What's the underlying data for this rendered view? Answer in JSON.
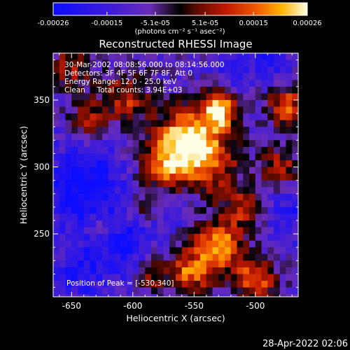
{
  "chart_data": {
    "type": "heatmap",
    "title": "Reconstructed RHESSI Image",
    "xlabel": "Heliocentric X (arcsec)",
    "ylabel": "Heliocentric Y (arcsec)",
    "xlim": [
      -665,
      -465
    ],
    "ylim": [
      203,
      385
    ],
    "xticks": [
      -650,
      -600,
      -550,
      -500
    ],
    "yticks": [
      250,
      300,
      350
    ],
    "colorbar": {
      "min": -0.00026,
      "max": 0.00026,
      "ticks": [
        {
          "value": -0.00026,
          "label": "-0.00026"
        },
        {
          "value": -0.00015,
          "label": "-0.00015"
        },
        {
          "value": -5.1e-05,
          "label": "-5.1e-05"
        },
        {
          "value": 5.1e-05,
          "label": "5.1e-05"
        },
        {
          "value": 0.00015,
          "label": "0.00015"
        },
        {
          "value": 0.00026,
          "label": "0.00026"
        }
      ],
      "unit": "(photons cm⁻² s⁻¹ asec⁻²)"
    },
    "annotations": [
      "30-Mar-2002 08:08:56.000 to 08:14:56.000",
      "Detectors: 3F 4F 5F 6F 7F 8F, Att 0",
      "Energy Range: 12.0 - 25.0 keV",
      "Clean     Total counts: 3.94E+03"
    ],
    "peak_label": "Position of Peak = [-530,340]",
    "peak": {
      "x": -530,
      "y": 340
    },
    "sources": [
      {
        "x": -530,
        "y": 342,
        "sigma": 10,
        "amp": 1.0
      },
      {
        "x": -560,
        "y": 322,
        "sigma": 16,
        "amp": 0.75
      },
      {
        "x": -540,
        "y": 305,
        "sigma": 18,
        "amp": 0.7
      },
      {
        "x": -575,
        "y": 300,
        "sigma": 13,
        "amp": 0.55
      },
      {
        "x": -605,
        "y": 352,
        "sigma": 13,
        "amp": 0.55
      },
      {
        "x": -635,
        "y": 335,
        "sigma": 11,
        "amp": 0.45
      },
      {
        "x": -650,
        "y": 375,
        "sigma": 12,
        "amp": 0.45
      },
      {
        "x": -475,
        "y": 345,
        "sigma": 10,
        "amp": 0.7
      },
      {
        "x": -480,
        "y": 300,
        "sigma": 12,
        "amp": 0.45
      },
      {
        "x": -530,
        "y": 240,
        "sigma": 14,
        "amp": 0.85
      },
      {
        "x": -555,
        "y": 220,
        "sigma": 12,
        "amp": 0.65
      },
      {
        "x": -500,
        "y": 215,
        "sigma": 11,
        "amp": 0.7
      },
      {
        "x": -510,
        "y": 270,
        "sigma": 10,
        "amp": 0.5
      },
      {
        "x": -625,
        "y": 255,
        "sigma": 9,
        "amp": 0.4
      },
      {
        "x": -595,
        "y": 270,
        "sigma": 9,
        "amp": 0.35
      },
      {
        "x": -585,
        "y": 220,
        "sigma": 9,
        "amp": 0.4
      }
    ],
    "negative_regions": [
      {
        "x": -640,
        "y": 285,
        "sigma": 22,
        "amp": 0.9
      },
      {
        "x": -610,
        "y": 245,
        "sigma": 18,
        "amp": 0.7
      },
      {
        "x": -645,
        "y": 220,
        "sigma": 14,
        "amp": 0.6
      },
      {
        "x": -490,
        "y": 380,
        "sigma": 12,
        "amp": 0.55
      },
      {
        "x": -520,
        "y": 375,
        "sigma": 10,
        "amp": 0.5
      },
      {
        "x": -470,
        "y": 265,
        "sigma": 14,
        "amp": 0.5
      },
      {
        "x": -560,
        "y": 270,
        "sigma": 10,
        "amp": 0.3
      }
    ]
  },
  "timestamp": "28-Apr-2022 02:06"
}
